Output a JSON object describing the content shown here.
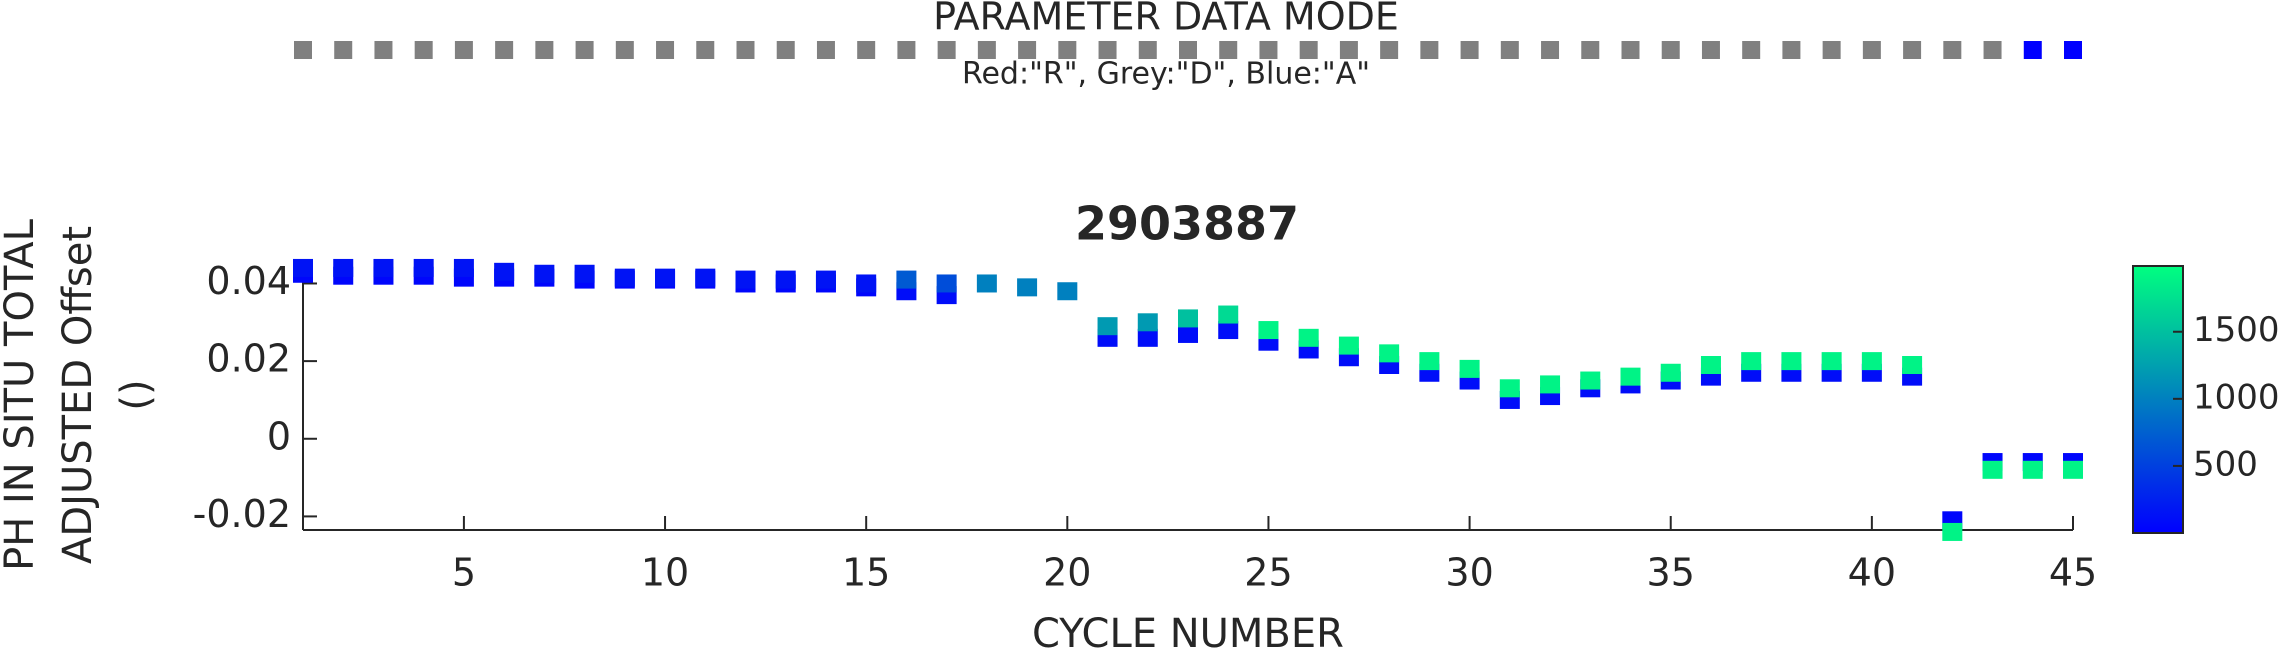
{
  "data_mode": {
    "title": "PARAMETER DATA MODE",
    "subtitle": "Red:\"R\", Grey:\"D\", Blue:\"A\"",
    "cycles": [
      1,
      2,
      3,
      4,
      5,
      6,
      7,
      8,
      9,
      10,
      11,
      12,
      13,
      14,
      15,
      16,
      17,
      18,
      19,
      20,
      21,
      22,
      23,
      24,
      25,
      26,
      27,
      28,
      29,
      30,
      31,
      32,
      33,
      34,
      35,
      36,
      37,
      38,
      39,
      40,
      41,
      42,
      43,
      44,
      45
    ],
    "modes": [
      "D",
      "D",
      "D",
      "D",
      "D",
      "D",
      "D",
      "D",
      "D",
      "D",
      "D",
      "D",
      "D",
      "D",
      "D",
      "D",
      "D",
      "D",
      "D",
      "D",
      "D",
      "D",
      "D",
      "D",
      "D",
      "D",
      "D",
      "D",
      "D",
      "D",
      "D",
      "D",
      "D",
      "D",
      "D",
      "D",
      "D",
      "D",
      "D",
      "D",
      "D",
      "D",
      "D",
      "A",
      "A"
    ],
    "mode_colors": {
      "R": "#ff0000",
      "D": "#808080",
      "A": "#0000ff"
    }
  },
  "chart_data": {
    "type": "scatter",
    "title": "2903887",
    "x_label": "CYCLE NUMBER",
    "y_label": [
      "PH IN SITU TOTAL",
      "ADJUSTED Offset",
      "()"
    ],
    "xlim": [
      1,
      45
    ],
    "xticks": [
      5,
      10,
      15,
      20,
      25,
      30,
      35,
      40,
      45
    ],
    "ylim": [
      -0.0235,
      0.0445
    ],
    "yticks": [
      0.04,
      0.02,
      0,
      -0.02
    ],
    "series": [
      {
        "name": "offset",
        "x": [
          1,
          1,
          2,
          2,
          3,
          3,
          4,
          4,
          5,
          5,
          6,
          6,
          7,
          7,
          8,
          8,
          9,
          9,
          10,
          10,
          11,
          11,
          12,
          12,
          13,
          13,
          14,
          14,
          15,
          15,
          16,
          16,
          17,
          17,
          18,
          19,
          20,
          21,
          21,
          22,
          22,
          23,
          23,
          24,
          24,
          25,
          25,
          26,
          26,
          27,
          27,
          28,
          28,
          29,
          29,
          30,
          30,
          31,
          31,
          32,
          32,
          33,
          33,
          34,
          34,
          35,
          35,
          36,
          36,
          37,
          37,
          38,
          38,
          39,
          39,
          40,
          40,
          41,
          41,
          42,
          42,
          43,
          43,
          44,
          44,
          45,
          45
        ],
        "values": [
          0.0425,
          0.044,
          0.042,
          0.044,
          0.042,
          0.044,
          0.042,
          0.044,
          0.0415,
          0.044,
          0.0415,
          0.043,
          0.0415,
          0.0425,
          0.041,
          0.0425,
          0.041,
          0.0415,
          0.041,
          0.0415,
          0.041,
          0.0415,
          0.04,
          0.041,
          0.04,
          0.041,
          0.04,
          0.041,
          0.039,
          0.04,
          0.038,
          0.041,
          0.037,
          0.04,
          0.04,
          0.039,
          0.038,
          0.026,
          0.029,
          0.026,
          0.03,
          0.027,
          0.031,
          0.028,
          0.032,
          0.025,
          0.028,
          0.023,
          0.026,
          0.021,
          0.024,
          0.019,
          0.022,
          0.017,
          0.02,
          0.015,
          0.018,
          0.01,
          0.013,
          0.011,
          0.014,
          0.013,
          0.015,
          0.014,
          0.016,
          0.015,
          0.017,
          0.016,
          0.019,
          0.017,
          0.02,
          0.017,
          0.02,
          0.017,
          0.02,
          0.017,
          0.02,
          0.016,
          0.019,
          -0.021,
          -0.024,
          -0.006,
          -0.008,
          -0.006,
          -0.008,
          -0.006,
          -0.008
        ],
        "c": [
          50,
          150,
          50,
          150,
          50,
          150,
          50,
          150,
          50,
          150,
          50,
          150,
          50,
          150,
          50,
          150,
          50,
          150,
          50,
          150,
          50,
          150,
          50,
          150,
          50,
          150,
          50,
          150,
          50,
          150,
          100,
          700,
          100,
          600,
          1000,
          1000,
          1000,
          100,
          1200,
          100,
          1200,
          100,
          1500,
          100,
          1700,
          100,
          1900,
          100,
          1900,
          100,
          1900,
          100,
          1900,
          100,
          1900,
          100,
          1900,
          100,
          1900,
          100,
          1900,
          100,
          1900,
          100,
          1900,
          100,
          1900,
          100,
          1900,
          100,
          1900,
          100,
          1900,
          100,
          1900,
          100,
          1900,
          100,
          1900,
          50,
          1900,
          50,
          1900,
          50,
          1900,
          50,
          1900
        ]
      }
    ],
    "colorbar": {
      "lim": [
        0,
        1990
      ],
      "ticks": [
        500,
        1000,
        1500
      ],
      "colors": [
        "#0000ff",
        "#00ff80"
      ]
    }
  }
}
